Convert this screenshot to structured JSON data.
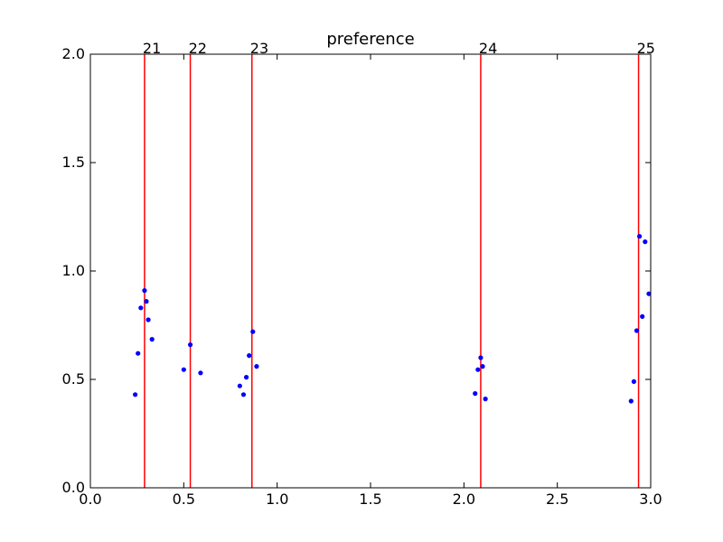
{
  "chart_data": {
    "type": "scatter",
    "title": "preference",
    "xlabel": "",
    "ylabel": "",
    "xlim": [
      0.0,
      3.0
    ],
    "ylim": [
      0.0,
      2.0
    ],
    "grid": false,
    "legend": "none",
    "xticks": [
      "0.0",
      "0.5",
      "1.0",
      "1.5",
      "2.0",
      "2.5",
      "3.0"
    ],
    "yticks": [
      "0.0",
      "0.5",
      "1.0",
      "1.5",
      "2.0"
    ],
    "vertical_lines": [
      {
        "x": 0.29,
        "label": "21"
      },
      {
        "x": 0.535,
        "label": "22"
      },
      {
        "x": 0.865,
        "label": "23"
      },
      {
        "x": 2.09,
        "label": "24"
      },
      {
        "x": 2.935,
        "label": "25"
      }
    ],
    "points": {
      "x": [
        0.24,
        0.255,
        0.27,
        0.29,
        0.3,
        0.31,
        0.33,
        0.5,
        0.535,
        0.59,
        0.8,
        0.82,
        0.835,
        0.85,
        0.87,
        0.89,
        2.06,
        2.075,
        2.09,
        2.1,
        2.115,
        2.895,
        2.91,
        2.925,
        2.94,
        2.955,
        2.97,
        2.99
      ],
      "y": [
        0.43,
        0.62,
        0.83,
        0.91,
        0.86,
        0.775,
        0.685,
        0.545,
        0.66,
        0.53,
        0.47,
        0.43,
        0.51,
        0.61,
        0.72,
        0.56,
        0.435,
        0.545,
        0.6,
        0.56,
        0.41,
        0.4,
        0.49,
        0.725,
        1.16,
        0.79,
        1.135,
        0.895
      ]
    },
    "colors": {
      "points": "#0000ff",
      "vertical_lines": "#ff0000",
      "axes": "#000000"
    }
  }
}
